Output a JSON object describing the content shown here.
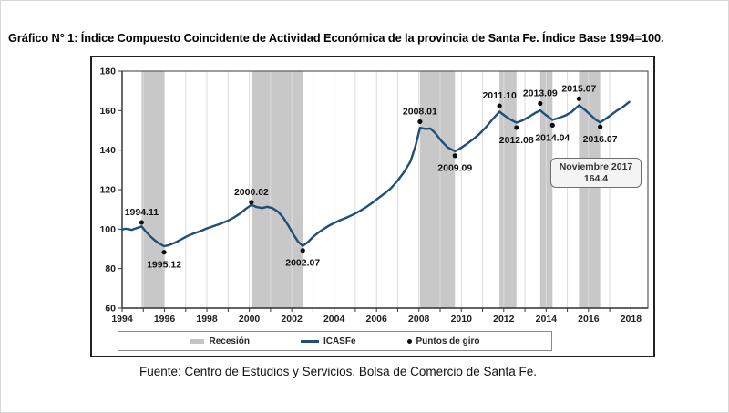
{
  "page": {
    "title": "Gráfico N° 1: Índice Compuesto Coincidente de Actividad Económica de la provincia de Santa Fe. Índice Base 1994=100.",
    "source": "Fuente: Centro de Estudios y Servicios, Bolsa de Comercio de Santa Fe."
  },
  "annotation": {
    "line1": "Noviembre 2017",
    "line2": "164.4"
  },
  "legend": {
    "recession_label": "Recesión",
    "line_label": "ICASFe",
    "points_label": "Puntos de giro"
  },
  "colors": {
    "line": "#1F4E79",
    "recession_band": "#C8C8C8",
    "legend_swatch": "#C4C4C4",
    "grid": "#DBDBDB",
    "axis": "#3a3a3a",
    "border": "#5a5a5a",
    "dot": "#0d0d0d",
    "tick_label": "#1f1f1f"
  },
  "chart_data": {
    "type": "line",
    "title": "Índice Compuesto Coincidente de Actividad Económica de la provincia de Santa Fe",
    "xlabel": "",
    "ylabel": "",
    "xlim": [
      1994,
      2018.8
    ],
    "ylim": [
      60,
      180
    ],
    "x_ticks": [
      1994,
      1996,
      1998,
      2000,
      2002,
      2004,
      2006,
      2008,
      2010,
      2012,
      2014,
      2016,
      2018
    ],
    "y_ticks": [
      60,
      80,
      100,
      120,
      140,
      160,
      180
    ],
    "grid": "vertical-yearly",
    "legend_position": "bottom",
    "series": [
      {
        "name": "ICASFe",
        "points": [
          [
            1994.0,
            99.8
          ],
          [
            1994.15,
            100.2
          ],
          [
            1994.3,
            100.0
          ],
          [
            1994.45,
            99.6
          ],
          [
            1994.6,
            100.2
          ],
          [
            1994.75,
            100.7
          ],
          [
            1994.92,
            101.4
          ],
          [
            1995.1,
            99.0
          ],
          [
            1995.3,
            96.7
          ],
          [
            1995.5,
            94.7
          ],
          [
            1995.7,
            93.0
          ],
          [
            1995.98,
            91.4
          ],
          [
            1996.2,
            91.9
          ],
          [
            1996.5,
            93.2
          ],
          [
            1996.8,
            94.9
          ],
          [
            1997.1,
            96.6
          ],
          [
            1997.4,
            97.9
          ],
          [
            1997.7,
            99.0
          ],
          [
            1998.0,
            100.4
          ],
          [
            1998.3,
            101.5
          ],
          [
            1998.6,
            102.6
          ],
          [
            1999.0,
            104.3
          ],
          [
            1999.3,
            106.0
          ],
          [
            1999.6,
            108.2
          ],
          [
            1999.85,
            110.4
          ],
          [
            2000.1,
            112.3
          ],
          [
            2000.35,
            111.2
          ],
          [
            2000.6,
            110.7
          ],
          [
            2000.85,
            111.3
          ],
          [
            2001.1,
            110.6
          ],
          [
            2001.35,
            108.9
          ],
          [
            2001.6,
            105.9
          ],
          [
            2001.85,
            101.7
          ],
          [
            2002.1,
            96.9
          ],
          [
            2002.3,
            93.7
          ],
          [
            2002.52,
            91.5
          ],
          [
            2002.75,
            93.3
          ],
          [
            2003.0,
            96.0
          ],
          [
            2003.25,
            98.2
          ],
          [
            2003.5,
            100.0
          ],
          [
            2003.75,
            101.7
          ],
          [
            2004.0,
            103.1
          ],
          [
            2004.3,
            104.6
          ],
          [
            2004.6,
            105.9
          ],
          [
            2004.9,
            107.4
          ],
          [
            2005.2,
            109.1
          ],
          [
            2005.5,
            111.1
          ],
          [
            2005.8,
            113.3
          ],
          [
            2006.1,
            115.8
          ],
          [
            2006.4,
            118.2
          ],
          [
            2006.7,
            120.9
          ],
          [
            2007.0,
            124.6
          ],
          [
            2007.3,
            128.9
          ],
          [
            2007.6,
            134.2
          ],
          [
            2007.85,
            142.5
          ],
          [
            2008.05,
            151.3
          ],
          [
            2008.3,
            150.8
          ],
          [
            2008.55,
            150.9
          ],
          [
            2008.8,
            148.3
          ],
          [
            2009.05,
            144.7
          ],
          [
            2009.35,
            141.4
          ],
          [
            2009.7,
            139.4
          ],
          [
            2009.95,
            140.9
          ],
          [
            2010.25,
            143.1
          ],
          [
            2010.55,
            145.5
          ],
          [
            2010.85,
            148.1
          ],
          [
            2011.15,
            151.5
          ],
          [
            2011.45,
            155.3
          ],
          [
            2011.8,
            159.5
          ],
          [
            2012.05,
            157.4
          ],
          [
            2012.3,
            155.6
          ],
          [
            2012.6,
            153.9
          ],
          [
            2012.9,
            155.1
          ],
          [
            2013.2,
            156.9
          ],
          [
            2013.5,
            158.9
          ],
          [
            2013.72,
            160.1
          ],
          [
            2013.95,
            158.1
          ],
          [
            2014.3,
            155.3
          ],
          [
            2014.6,
            156.3
          ],
          [
            2014.9,
            157.5
          ],
          [
            2015.2,
            159.3
          ],
          [
            2015.55,
            162.7
          ],
          [
            2015.85,
            160.2
          ],
          [
            2016.1,
            157.7
          ],
          [
            2016.35,
            155.3
          ],
          [
            2016.55,
            154.0
          ],
          [
            2016.85,
            156.2
          ],
          [
            2017.1,
            158.1
          ],
          [
            2017.35,
            160.1
          ],
          [
            2017.6,
            161.7
          ],
          [
            2017.92,
            164.4
          ]
        ]
      }
    ],
    "recession_bands": [
      [
        1994.92,
        1995.98
      ],
      [
        2000.1,
        2002.52
      ],
      [
        2008.05,
        2009.7
      ],
      [
        2011.8,
        2012.6
      ],
      [
        2013.72,
        2014.3
      ],
      [
        2015.55,
        2016.55
      ]
    ],
    "turning_points": [
      {
        "label": "1994.11",
        "x": 1994.92,
        "y": 103.4,
        "pos": "above"
      },
      {
        "label": "1995.12",
        "x": 1995.98,
        "y": 88.3,
        "pos": "below"
      },
      {
        "label": "2000.02",
        "x": 2000.1,
        "y": 113.6,
        "pos": "above"
      },
      {
        "label": "2002.07",
        "x": 2002.52,
        "y": 89.2,
        "pos": "below"
      },
      {
        "label": "2008.01",
        "x": 2008.05,
        "y": 154.4,
        "pos": "above"
      },
      {
        "label": "2009.09",
        "x": 2009.7,
        "y": 137.2,
        "pos": "below"
      },
      {
        "label": "2011.10",
        "x": 2011.8,
        "y": 162.4,
        "pos": "above"
      },
      {
        "label": "2012.08",
        "x": 2012.6,
        "y": 151.4,
        "pos": "below"
      },
      {
        "label": "2013.09",
        "x": 2013.72,
        "y": 163.6,
        "pos": "above"
      },
      {
        "label": "2014.04",
        "x": 2014.3,
        "y": 152.6,
        "pos": "below"
      },
      {
        "label": "2015.07",
        "x": 2015.55,
        "y": 166.0,
        "pos": "above"
      },
      {
        "label": "2016.07",
        "x": 2016.55,
        "y": 151.8,
        "pos": "below"
      }
    ],
    "end_note": {
      "date_label": "Noviembre 2017",
      "value": 164.4
    }
  }
}
